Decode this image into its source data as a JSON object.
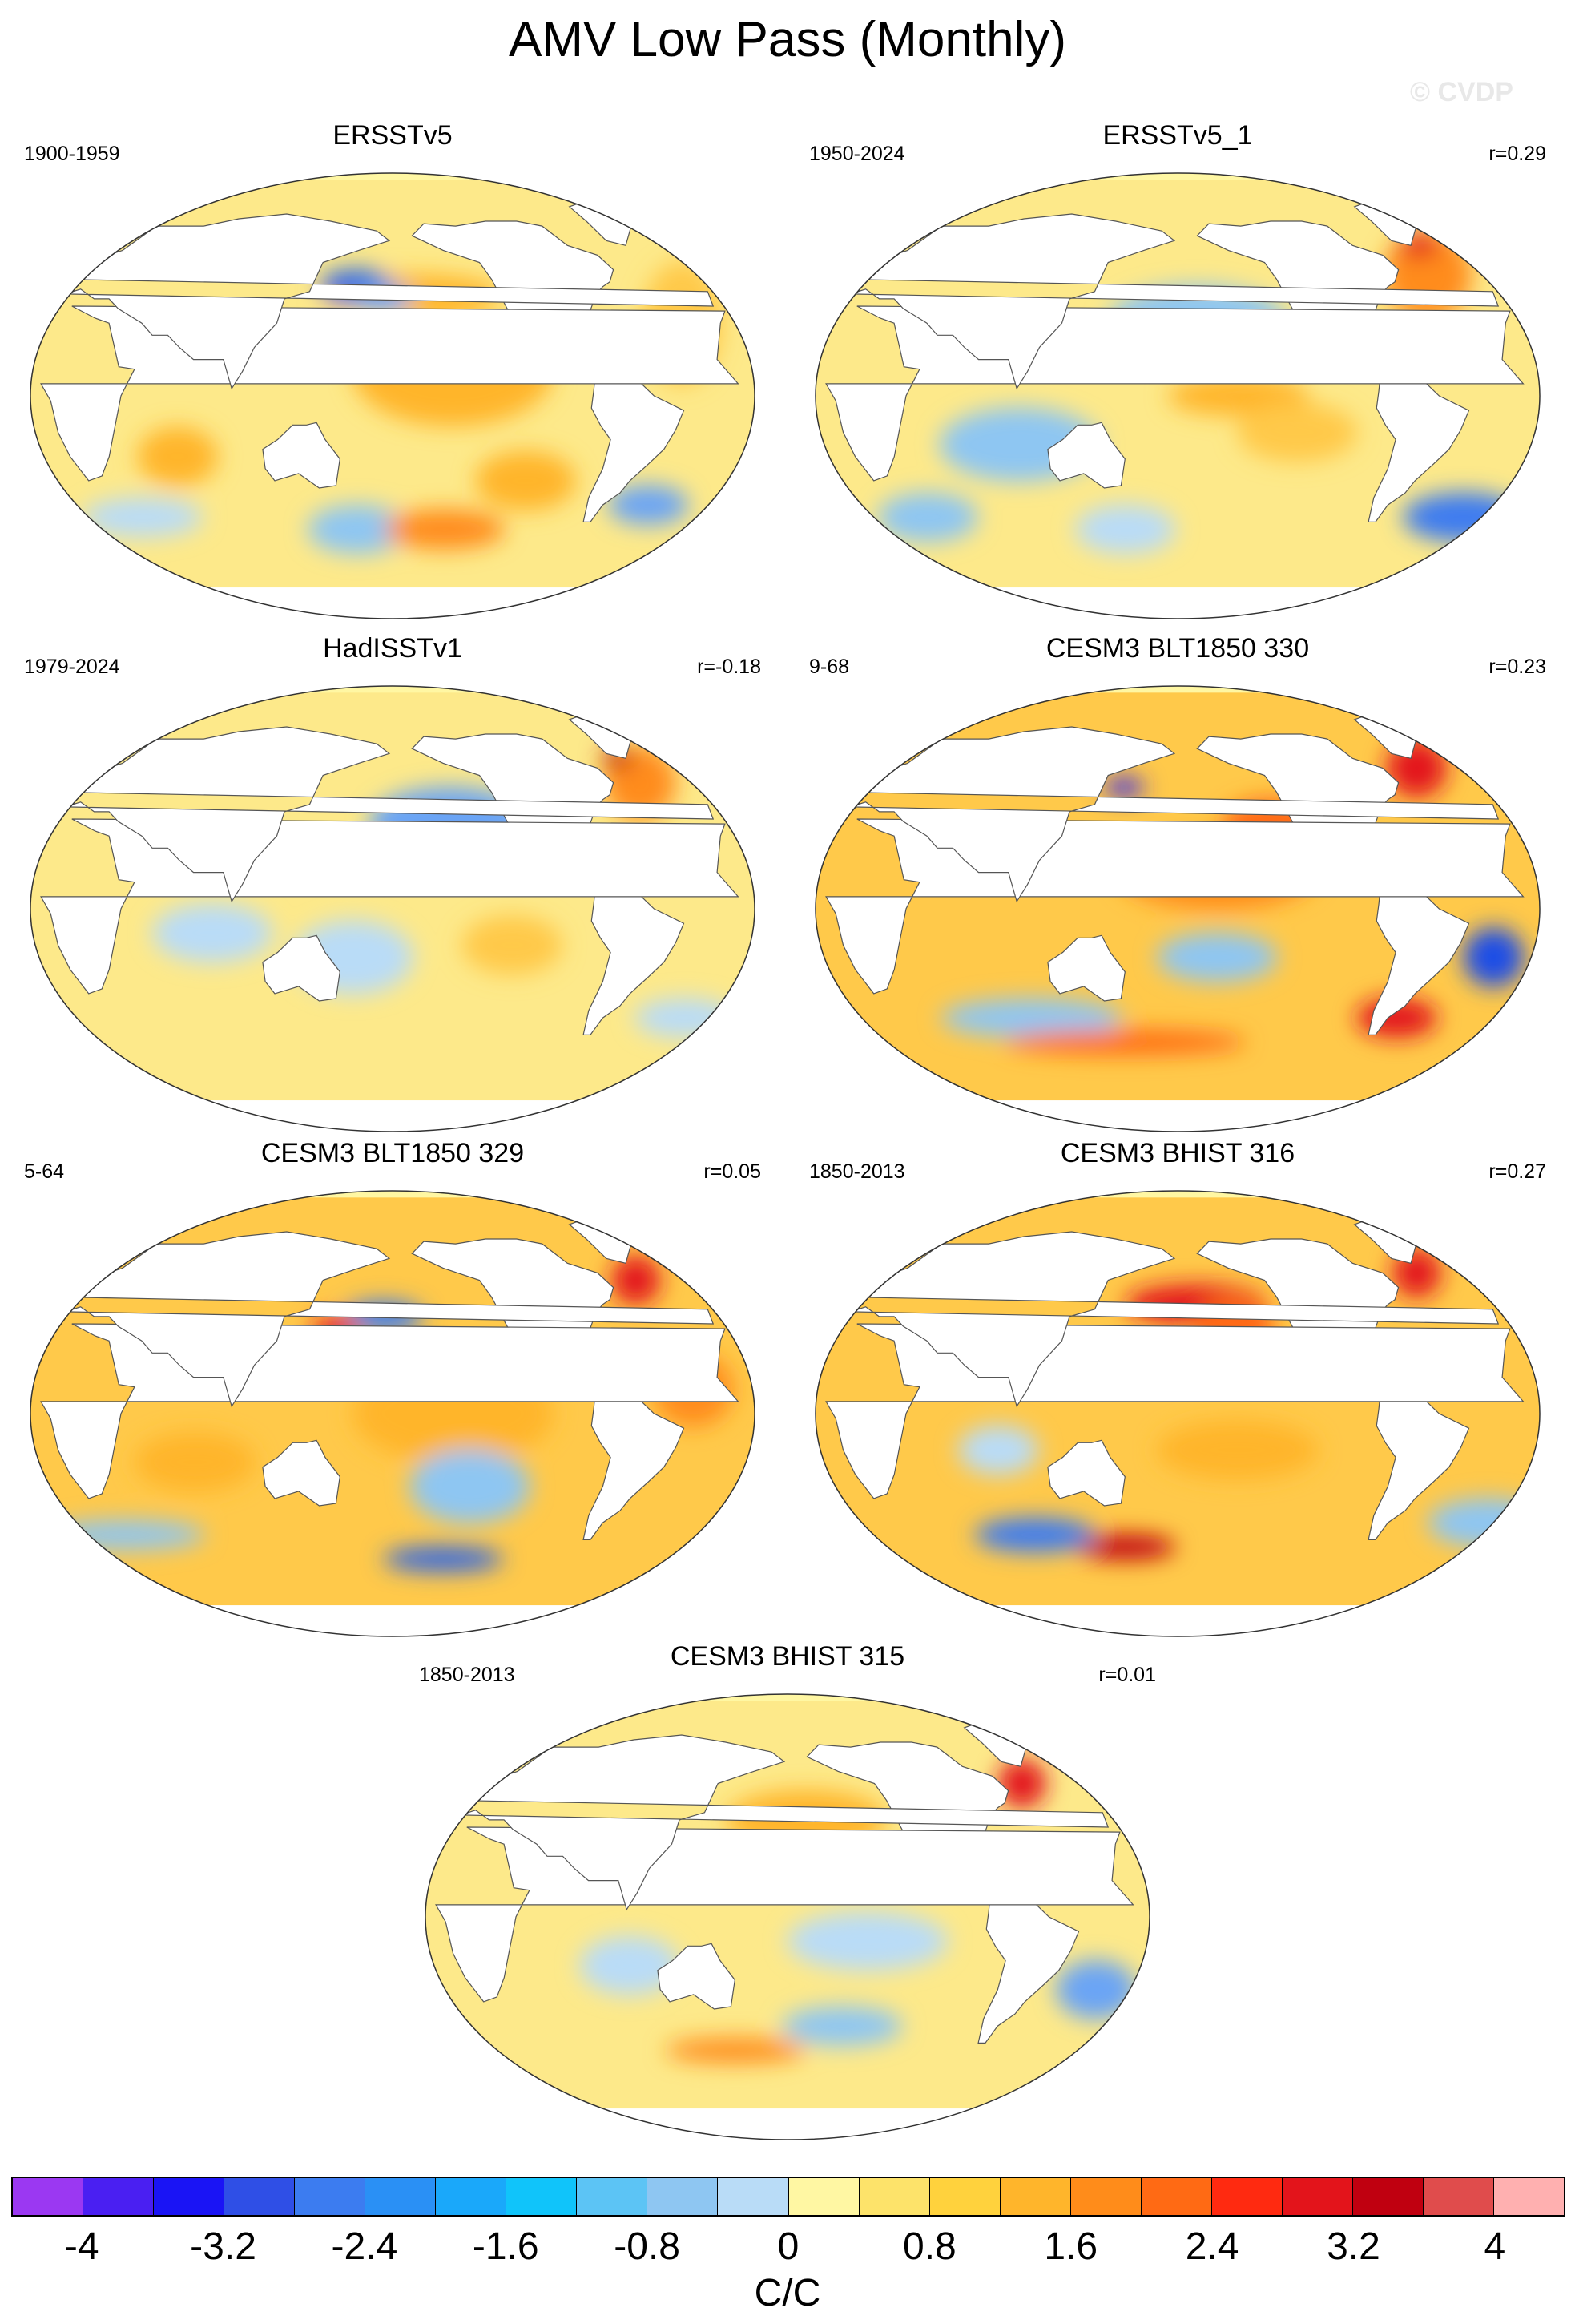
{
  "title": "AMV Low Pass (Monthly)",
  "watermark": "© CVDP",
  "panels": [
    {
      "title": "ERSSTv5",
      "period": "1900-1959",
      "corr": "",
      "map": {
        "base": "#fde98a",
        "land": "#ffffff",
        "coast": "#555555",
        "blobs": [
          {
            "lon": -170,
            "lat": 42,
            "rx": 45,
            "ry": 8,
            "c": "#ffb52b"
          },
          {
            "lon": 160,
            "lat": 45,
            "rx": 18,
            "ry": 7,
            "c": "#2f66e6"
          },
          {
            "lon": 175,
            "lat": 40,
            "rx": 15,
            "ry": 5,
            "c": "#6aa4f5"
          },
          {
            "lon": -150,
            "lat": 10,
            "rx": 50,
            "ry": 22,
            "c": "#ffb52b"
          },
          {
            "lon": -30,
            "lat": 30,
            "rx": 20,
            "ry": 25,
            "c": "#ffc94a"
          },
          {
            "lon": 70,
            "lat": -25,
            "rx": 20,
            "ry": 12,
            "c": "#ffb52b"
          },
          {
            "lon": 160,
            "lat": -55,
            "rx": 25,
            "ry": 10,
            "c": "#8ec6f2"
          },
          {
            "lon": -150,
            "lat": -55,
            "rx": 30,
            "ry": 8,
            "c": "#ff8c1a"
          },
          {
            "lon": -110,
            "lat": -35,
            "rx": 25,
            "ry": 12,
            "c": "#ffb52b"
          },
          {
            "lon": -40,
            "lat": -45,
            "rx": 20,
            "ry": 8,
            "c": "#6aa4f5"
          },
          {
            "lon": 40,
            "lat": -50,
            "rx": 30,
            "ry": 8,
            "c": "#b9dcf7"
          }
        ]
      }
    },
    {
      "title": "ERSSTv5_1",
      "period": "1950-2024",
      "corr": "r=0.29",
      "map": {
        "base": "#fde98a",
        "land": "#ffffff",
        "coast": "#555555",
        "blobs": [
          {
            "lon": -40,
            "lat": 50,
            "rx": 22,
            "ry": 18,
            "c": "#ff8c1a"
          },
          {
            "lon": -35,
            "lat": 62,
            "rx": 10,
            "ry": 5,
            "c": "#e3141b"
          },
          {
            "lon": -170,
            "lat": 30,
            "rx": 45,
            "ry": 15,
            "c": "#8ec6f2"
          },
          {
            "lon": 100,
            "lat": -20,
            "rx": 40,
            "ry": 15,
            "c": "#8ec6f2"
          },
          {
            "lon": -150,
            "lat": 0,
            "rx": 35,
            "ry": 8,
            "c": "#ffb52b"
          },
          {
            "lon": -120,
            "lat": -15,
            "rx": 30,
            "ry": 12,
            "c": "#ffc94a"
          },
          {
            "lon": -20,
            "lat": -50,
            "rx": 30,
            "ry": 10,
            "c": "#3c7cf0"
          },
          {
            "lon": 150,
            "lat": -55,
            "rx": 25,
            "ry": 10,
            "c": "#b9dcf7"
          },
          {
            "lon": 40,
            "lat": -50,
            "rx": 25,
            "ry": 10,
            "c": "#8ec6f2"
          }
        ]
      }
    },
    {
      "title": "HadISSTv1",
      "period": "1979-2024",
      "corr": "r=-0.18",
      "map": {
        "base": "#fde98a",
        "land": "#ffffff",
        "coast": "#555555",
        "blobs": [
          {
            "lon": -40,
            "lat": 52,
            "rx": 18,
            "ry": 15,
            "c": "#ff8c1a"
          },
          {
            "lon": -45,
            "lat": 62,
            "rx": 8,
            "ry": 4,
            "c": "#c00010"
          },
          {
            "lon": -150,
            "lat": 35,
            "rx": 40,
            "ry": 15,
            "c": "#6aa4f5"
          },
          {
            "lon": 160,
            "lat": -20,
            "rx": 30,
            "ry": 15,
            "c": "#b9dcf7"
          },
          {
            "lon": 90,
            "lat": -10,
            "rx": 30,
            "ry": 12,
            "c": "#b9dcf7"
          },
          {
            "lon": -120,
            "lat": -15,
            "rx": 25,
            "ry": 12,
            "c": "#ffc94a"
          },
          {
            "lon": -20,
            "lat": -45,
            "rx": 25,
            "ry": 8,
            "c": "#b9dcf7"
          }
        ]
      }
    },
    {
      "title": "CESM3 BLT1850 330",
      "period": "9-68",
      "corr": "r=0.23",
      "map": {
        "base": "#ffc94a",
        "land": "#ffffff",
        "coast": "#555555",
        "blobs": [
          {
            "lon": -160,
            "lat": 15,
            "rx": 50,
            "ry": 15,
            "c": "#ff8c1a"
          },
          {
            "lon": -130,
            "lat": 35,
            "rx": 25,
            "ry": 10,
            "c": "#ff6a14"
          },
          {
            "lon": -40,
            "lat": 58,
            "rx": 15,
            "ry": 12,
            "c": "#e3141b"
          },
          {
            "lon": -20,
            "lat": -20,
            "rx": 15,
            "ry": 12,
            "c": "#1f4de6"
          },
          {
            "lon": -60,
            "lat": -45,
            "rx": 20,
            "ry": 8,
            "c": "#e3141b"
          },
          {
            "lon": 100,
            "lat": -45,
            "rx": 45,
            "ry": 8,
            "c": "#8ec6f2"
          },
          {
            "lon": 150,
            "lat": -55,
            "rx": 60,
            "ry": 5,
            "c": "#ff6a14"
          },
          {
            "lon": 150,
            "lat": 50,
            "rx": 10,
            "ry": 4,
            "c": "#3c2fe6"
          },
          {
            "lon": -160,
            "lat": -20,
            "rx": 30,
            "ry": 10,
            "c": "#8ec6f2"
          }
        ]
      }
    },
    {
      "title": "CESM3 BLT1850 329",
      "period": "5-64",
      "corr": "r=0.05",
      "map": {
        "base": "#ffc94a",
        "land": "#ffffff",
        "coast": "#555555",
        "blobs": [
          {
            "lon": -150,
            "lat": 0,
            "rx": 50,
            "ry": 20,
            "c": "#ffb52b"
          },
          {
            "lon": 175,
            "lat": 40,
            "rx": 20,
            "ry": 6,
            "c": "#3c7cf0"
          },
          {
            "lon": 150,
            "lat": 35,
            "rx": 12,
            "ry": 5,
            "c": "#e3141b"
          },
          {
            "lon": -40,
            "lat": 55,
            "rx": 12,
            "ry": 10,
            "c": "#e3141b"
          },
          {
            "lon": -140,
            "lat": -30,
            "rx": 30,
            "ry": 15,
            "c": "#8ec6f2"
          },
          {
            "lon": -150,
            "lat": -60,
            "rx": 30,
            "ry": 5,
            "c": "#2f66e6"
          },
          {
            "lon": 80,
            "lat": -20,
            "rx": 30,
            "ry": 12,
            "c": "#ffb52b"
          },
          {
            "lon": 30,
            "lat": -50,
            "rx": 40,
            "ry": 6,
            "c": "#8ec6f2"
          },
          {
            "lon": -30,
            "lat": 10,
            "rx": 20,
            "ry": 15,
            "c": "#ff8c1a"
          }
        ]
      }
    },
    {
      "title": "CESM3 BHIST 316",
      "period": "1850-2013",
      "corr": "r=0.27",
      "map": {
        "base": "#ffc94a",
        "land": "#ffffff",
        "coast": "#555555",
        "blobs": [
          {
            "lon": -170,
            "lat": 45,
            "rx": 35,
            "ry": 8,
            "c": "#e3141b"
          },
          {
            "lon": -150,
            "lat": 35,
            "rx": 20,
            "ry": 12,
            "c": "#ff6a14"
          },
          {
            "lon": -40,
            "lat": 58,
            "rx": 12,
            "ry": 10,
            "c": "#e3141b"
          },
          {
            "lon": -150,
            "lat": -15,
            "rx": 40,
            "ry": 12,
            "c": "#ffb52b"
          },
          {
            "lon": 150,
            "lat": -55,
            "rx": 25,
            "ry": 5,
            "c": "#c00010"
          },
          {
            "lon": 100,
            "lat": -50,
            "rx": 30,
            "ry": 7,
            "c": "#3c7cf0"
          },
          {
            "lon": -10,
            "lat": -45,
            "rx": 30,
            "ry": 10,
            "c": "#8ec6f2"
          },
          {
            "lon": 90,
            "lat": -15,
            "rx": 20,
            "ry": 10,
            "c": "#b9dcf7"
          }
        ]
      }
    },
    {
      "title": "CESM3 BHIST 315",
      "period": "1850-2013",
      "corr": "r=0.01",
      "map": {
        "base": "#fde98a",
        "land": "#ffffff",
        "coast": "#555555",
        "blobs": [
          {
            "lon": -170,
            "lat": 40,
            "rx": 40,
            "ry": 12,
            "c": "#ffb52b"
          },
          {
            "lon": -45,
            "lat": 55,
            "rx": 12,
            "ry": 10,
            "c": "#e3141b"
          },
          {
            "lon": -140,
            "lat": -10,
            "rx": 40,
            "ry": 12,
            "c": "#b9dcf7"
          },
          {
            "lon": -20,
            "lat": -30,
            "rx": 20,
            "ry": 12,
            "c": "#6aa4f5"
          },
          {
            "lon": 100,
            "lat": -20,
            "rx": 25,
            "ry": 12,
            "c": "#b9dcf7"
          },
          {
            "lon": 150,
            "lat": -55,
            "rx": 35,
            "ry": 5,
            "c": "#ff8c1a"
          },
          {
            "lon": -150,
            "lat": -45,
            "rx": 30,
            "ry": 8,
            "c": "#8ec6f2"
          }
        ]
      }
    }
  ],
  "colorbar": {
    "colors": [
      "#9b38f2",
      "#4a1ff2",
      "#1a14f5",
      "#2f4fe6",
      "#3c7cf0",
      "#2a90f5",
      "#1aa8fa",
      "#10c4fa",
      "#5cc4f5",
      "#8ec6f2",
      "#b9dcf7",
      "#fff7a3",
      "#fde36a",
      "#ffd23d",
      "#ffb52b",
      "#ff8c1a",
      "#ff6a14",
      "#ff2a10",
      "#e3141b",
      "#c00010",
      "#e04c4c",
      "#ffb0b0"
    ],
    "labels": [
      "-4",
      "-3.2",
      "-2.4",
      "-1.6",
      "-0.8",
      "0",
      "0.8",
      "1.6",
      "2.4",
      "3.2",
      "4"
    ],
    "units": "C/C"
  }
}
